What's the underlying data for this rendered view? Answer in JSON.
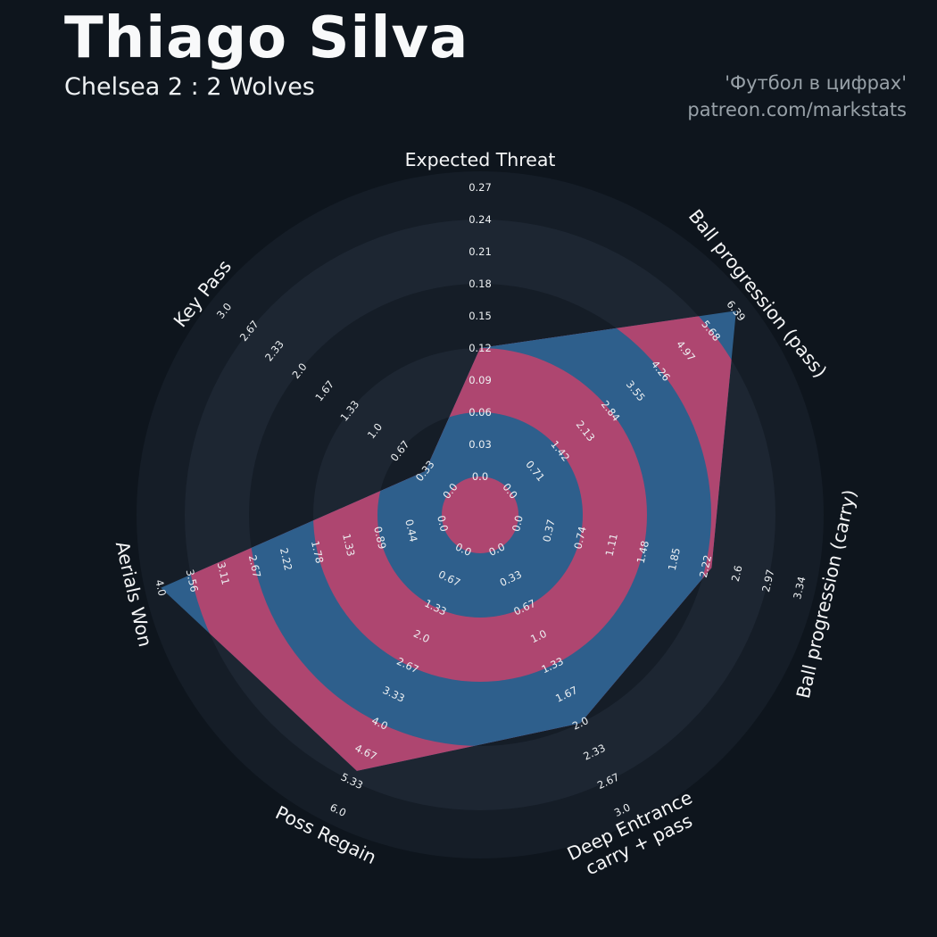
{
  "header": {
    "title": "Thiago Silva",
    "subtitle": "Chelsea 2 : 2 Wolves",
    "credit1": "'Футбол в цифрах'",
    "credit2": "patreon.com/markstats"
  },
  "chart_data": {
    "type": "radar",
    "title": "Thiago Silva — Chelsea 2 : 2 Wolves",
    "layout": {
      "grid": "circular",
      "start_axis": "top",
      "direction": "clockwise",
      "legend": false,
      "rings_per_axis": 9
    },
    "axes": [
      {
        "label": "Expected Threat",
        "label_lines": [
          "Expected Threat"
        ],
        "min": 0,
        "max": 0.27,
        "ticks": [
          "0.0",
          "0.03",
          "0.06",
          "0.09",
          "0.12",
          "0.15",
          "0.18",
          "0.21",
          "0.24",
          "0.27"
        ],
        "value": 0.12
      },
      {
        "label": "Ball progression (pass)",
        "label_lines": [
          "Ball progression (pass)"
        ],
        "min": 0,
        "max": 6.39,
        "ticks": [
          "0.0",
          "0.71",
          "1.42",
          "2.13",
          "2.84",
          "3.55",
          "4.26",
          "4.97",
          "5.68",
          "6.39"
        ],
        "value": 6.39
      },
      {
        "label": "Ball progression (carry)",
        "label_lines": [
          "Ball progression (carry)"
        ],
        "min": 0,
        "max": 3.34,
        "ticks": [
          "0.0",
          "0.37",
          "0.74",
          "1.11",
          "1.48",
          "1.85",
          "2.22",
          "2.6",
          "2.97",
          "3.34"
        ],
        "value": 2.3
      },
      {
        "label": "Deep Entrance carry + pass",
        "label_lines": [
          "Deep Entrance",
          "carry + pass"
        ],
        "min": 0,
        "max": 3.0,
        "ticks": [
          "0.0",
          "0.33",
          "0.67",
          "1.0",
          "1.33",
          "1.67",
          "2.0",
          "2.33",
          "2.67",
          "3.0"
        ],
        "value": 2.0
      },
      {
        "label": "Poss Regain",
        "label_lines": [
          "Poss Regain"
        ],
        "min": 0,
        "max": 6.0,
        "ticks": [
          "0.0",
          "0.67",
          "1.33",
          "2.0",
          "2.67",
          "3.33",
          "4.0",
          "4.67",
          "5.33",
          "6.0"
        ],
        "value": 5.1
      },
      {
        "label": "Aerials Won",
        "label_lines": [
          "Aerials Won"
        ],
        "min": 0,
        "max": 4.0,
        "ticks": [
          "0.0",
          "0.44",
          "0.89",
          "1.33",
          "1.78",
          "2.22",
          "2.67",
          "3.11",
          "3.56",
          "4.0"
        ],
        "value": 4.0
      },
      {
        "label": "Key Pass",
        "label_lines": [
          "Key Pass"
        ],
        "min": 0,
        "max": 3.0,
        "ticks": [
          "0.0",
          "0.33",
          "0.67",
          "1.0",
          "1.33",
          "1.67",
          "2.0",
          "2.33",
          "2.67",
          "3.0"
        ],
        "value": 0.33
      }
    ],
    "colors": {
      "background": "#0e151d",
      "polygon_blue": "#2e5f8c",
      "ring_crimson": "#ae4670",
      "ring_dark": "#151d27",
      "ring_light": "#1d2632",
      "tick_text": "#eef1f3",
      "axis_text": "#f5f6f7",
      "credit_text": "#98a1a8"
    }
  }
}
